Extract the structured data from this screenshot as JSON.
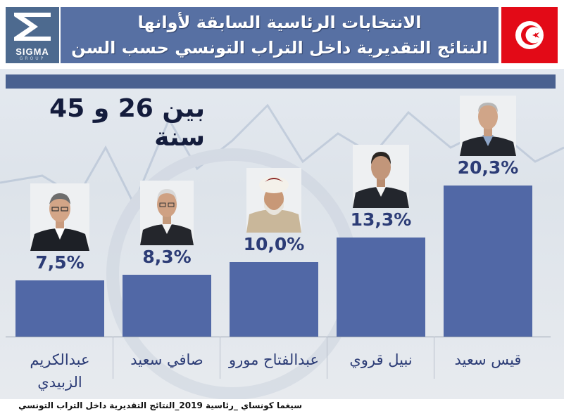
{
  "header": {
    "logo_text": "SIGMA",
    "logo_subtext": "GROUP",
    "title_line1": "الانتخابات الرئاسية السابقة لأوانها",
    "title_line2": "النتائج التقديرية داخل التراب التونسي حسب السن",
    "flag": "tunisia-flag",
    "colors": {
      "title_bg": "#5770a3",
      "logo_bg": "#4d6a8f",
      "flag_red": "#e30a17"
    }
  },
  "subtitle": "بين 26 و 45 سنة",
  "footer": "سيغما كونساي _رئاسية 2019_النتائج التقديرية داخل التراب التونسي",
  "chart_data": {
    "type": "bar",
    "title": "",
    "xlabel": "",
    "ylabel": "",
    "ylim": [
      0,
      25
    ],
    "bar_color": "#5168a6",
    "label_color": "#2c3c76",
    "categories": [
      "عبدالكريم الزبيدي",
      "صافي سعيد",
      "عبدالفتاح مورو",
      "نبيل قروي",
      "قيس سعيد"
    ],
    "values": [
      7.5,
      8.3,
      10.0,
      13.3,
      20.3
    ],
    "value_labels": [
      "7,5%",
      "8,3%",
      "10,0%",
      "13,3%",
      "20,3%"
    ],
    "candidate_photos": [
      "candidate-photo-zbidi",
      "candidate-photo-safi",
      "candidate-photo-mourou",
      "candidate-photo-karoui",
      "candidate-photo-saied"
    ]
  }
}
